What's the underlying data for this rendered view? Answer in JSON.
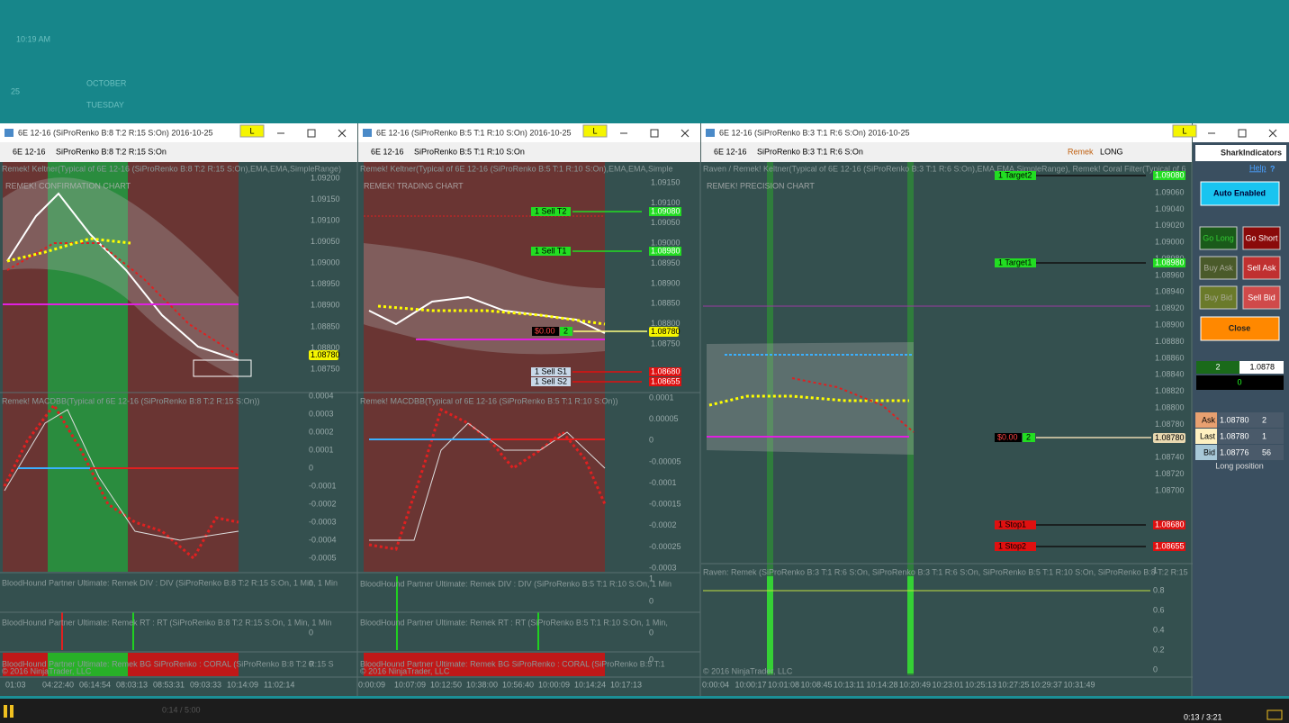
{
  "clock": {
    "time": "10:19 AM",
    "day": "25",
    "month": "OCTOBER",
    "weekday": "TUESDAY"
  },
  "windows": [
    {
      "title": "6E 12-16 (SiProRenko B:8 T:2 R:15 S:On)  2016-10-25",
      "badge": "L",
      "instrument": "6E 12-16",
      "series": "SiProRenko B:8 T:2 R:15 S:On",
      "indicator": "Remek! Keltner(Typical of 6E 12-16 (SiProRenko B:8 T:2 R:15 S:On),EMA,EMA,SimpleRange)",
      "chart_name": "REMEK! CONFIRMATION CHART",
      "price_ticks": [
        "1.09200",
        "1.09150",
        "1.09100",
        "1.09050",
        "1.09000",
        "1.08950",
        "1.08900",
        "1.08850",
        "1.08800",
        "1.08750"
      ],
      "last_price": "1.08780",
      "orders": [],
      "position": null,
      "macd_label": "Remek! MACDBB(Typical of 6E 12-16 (SiProRenko B:8 T:2 R:15 S:On))",
      "macd_ticks": [
        "0.0004",
        "0.0003",
        "0.0002",
        "0.0001",
        "0",
        "-0.0001",
        "-0.0002",
        "-0.0003",
        "-0.0004",
        "-0.0005"
      ],
      "panels": [
        {
          "label": "BloodHound Partner Ultimate: Remek DIV : DIV (SiProRenko B:8 T:2 R:15 S:On, 1 Min, 1 Min",
          "ticks": [
            "0"
          ]
        },
        {
          "label": "BloodHound Partner Ultimate: Remek RT : RT (SiProRenko B:8 T:2 R:15 S:On, 1 Min, 1 Min",
          "ticks": [
            "0"
          ]
        },
        {
          "label": "BloodHound Partner Ultimate: Remek BG SiProRenko : CORAL (SiProRenko B:8 T:2 R:15 S",
          "ticks": [
            "0"
          ]
        }
      ],
      "copyright": "© 2016 NinjaTrader, LLC",
      "time_ticks": [
        "01:03",
        "04:22:40",
        "06:14:54",
        "08:03:13",
        "08:53:31",
        "09:03:33",
        "10:14:09",
        "11:02:14"
      ]
    },
    {
      "title": "6E 12-16 (SiProRenko B:5 T:1 R:10 S:On)  2016-10-25",
      "badge": "L",
      "instrument": "6E 12-16",
      "series": "SiProRenko B:5 T:1 R:10 S:On",
      "indicator": "Remek! Keltner(Typical of 6E 12-16 (SiProRenko B:5 T:1 R:10 S:On),EMA,EMA,Simple",
      "chart_name": "REMEK! TRADING CHART",
      "price_ticks": [
        "1.09150",
        "1.09100",
        "1.09050",
        "1.09000",
        "1.08950",
        "1.08900",
        "1.08850",
        "1.08800",
        "1.08750"
      ],
      "last_price": "1.08780",
      "orders": [
        {
          "label": "1  Sell T2",
          "price": "1.09080",
          "color": "#22dd22"
        },
        {
          "label": "1  Sell T1",
          "price": "1.08980",
          "color": "#22dd22"
        },
        {
          "label": "1  Sell S1",
          "price": "1.08680",
          "color": "#e01010"
        },
        {
          "label": "1  Sell S2",
          "price": "1.08655",
          "color": "#e01010"
        }
      ],
      "position": {
        "pnl": "$0.00",
        "qty": "2"
      },
      "macd_label": "Remek! MACDBB(Typical of 6E 12-16 (SiProRenko B:5 T:1 R:10 S:On))",
      "macd_ticks": [
        "0.0001",
        "0.00005",
        "0",
        "-0.00005",
        "-0.0001",
        "-0.00015",
        "-0.0002",
        "-0.00025",
        "-0.0003"
      ],
      "panels": [
        {
          "label": "BloodHound Partner Ultimate: Remek DIV : DIV (SiProRenko B:5 T:1 R:10 S:On, 1 Min",
          "ticks": [
            "1",
            "0"
          ]
        },
        {
          "label": "BloodHound Partner Ultimate: Remek RT : RT (SiProRenko B:5 T:1 R:10 S:On, 1 Min,",
          "ticks": [
            "0"
          ]
        },
        {
          "label": "BloodHound Partner Ultimate: Remek BG SiProRenko : CORAL (SiProRenko B:5 T:1",
          "ticks": [
            "0"
          ]
        }
      ],
      "copyright": "© 2016 NinjaTrader, LLC",
      "time_ticks": [
        "0:00:09",
        "10:07:09",
        "10:12:50",
        "10:38:00",
        "10:56:40",
        "10:00:09",
        "10:14:24",
        "10:17:13"
      ]
    },
    {
      "title": "6E 12-16 (SiProRenko B:3 T:1 R:6 S:On)  2016-10-25",
      "badge": "L",
      "instrument": "6E 12-16",
      "series": "SiProRenko B:3 T:1 R:6 S:On",
      "strategy": "Remek",
      "direction": "LONG",
      "indicator": "Raven / Remek! Keltner(Typical of 6E 12-16 (SiProRenko B:3 T:1 R:6 S:On),EMA,EMA,SimpleRange), Remek! Coral Filter(Typical of 6",
      "chart_name": "REMEK! PRECISION CHART",
      "price_ticks": [
        "1.09060",
        "1.09040",
        "1.09020",
        "1.09000",
        "1.08980",
        "1.08960",
        "1.08940",
        "1.08920",
        "1.08900",
        "1.08880",
        "1.08860",
        "1.08840",
        "1.08820",
        "1.08800",
        "1.08780",
        "1.08760",
        "1.08740",
        "1.08720",
        "1.08700"
      ],
      "last_price": "1.08780",
      "orders": [
        {
          "label": "1  Target2",
          "price": "1.09080",
          "color": "#22dd22"
        },
        {
          "label": "1  Target1",
          "price": "1.08980",
          "color": "#22dd22"
        },
        {
          "label": "1  Stop1",
          "price": "1.08680",
          "color": "#e01010"
        },
        {
          "label": "1  Stop2",
          "price": "1.08655",
          "color": "#e01010"
        }
      ],
      "position": {
        "pnl": "$0.00",
        "qty": "2"
      },
      "panels": [
        {
          "label": "Raven: Remek (SiProRenko B:3 T:1 R:6 S:On, SiProRenko B:3 T:1 R:6 S:On, SiProRenko B:5 T:1 R:10 S:On, SiProRenko B:8 T:2 R:15",
          "ticks": [
            "1",
            "0.8",
            "0.6",
            "0.4",
            "0.2",
            "0"
          ]
        }
      ],
      "copyright": "© 2016 NinjaTrader, LLC",
      "time_ticks": [
        "0:00:04",
        "10:00:17",
        "10:01:08",
        "10:08:45",
        "10:13:11",
        "10:14:28",
        "10:20:49",
        "10:23:01",
        "10:25:13",
        "10:27:25",
        "10:29:37",
        "10:31:49"
      ]
    }
  ],
  "shark": {
    "brand": "SharkIndicators",
    "help": "Help",
    "help_icon": "?",
    "auto": "Auto Enabled",
    "buttons": [
      [
        "Go Long",
        "Go Short"
      ],
      [
        "Buy Ask",
        "Sell Ask"
      ],
      [
        "Buy Bid",
        "Sell Bid"
      ]
    ],
    "close": "Close",
    "qty": "2",
    "price": "1.0878",
    "pnl": "0",
    "quotes": [
      [
        "Ask",
        "1.08780",
        "2"
      ],
      [
        "Last",
        "1.08780",
        "1"
      ],
      [
        "Bid",
        "1.08776",
        "56"
      ]
    ],
    "status": "Long position"
  },
  "player": {
    "elapsed": "0:14 / 5:00",
    "remaining": "0:13 / 3:21"
  }
}
